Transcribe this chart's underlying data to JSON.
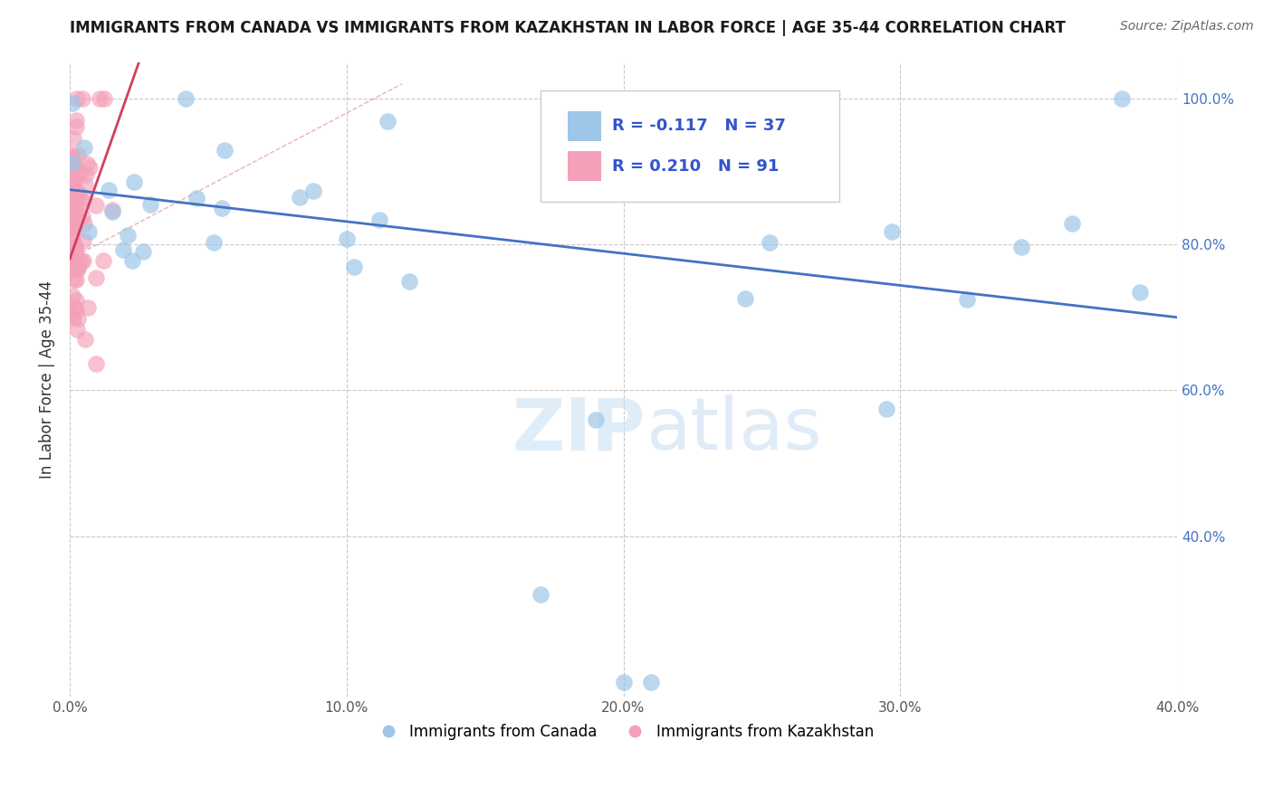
{
  "title": "IMMIGRANTS FROM CANADA VS IMMIGRANTS FROM KAZAKHSTAN IN LABOR FORCE | AGE 35-44 CORRELATION CHART",
  "source": "Source: ZipAtlas.com",
  "ylabel": "In Labor Force | Age 35-44",
  "xlim": [
    0.0,
    0.4
  ],
  "ylim": [
    0.18,
    1.05
  ],
  "xticks": [
    0.0,
    0.1,
    0.2,
    0.3,
    0.4
  ],
  "xtick_labels": [
    "0.0%",
    "10.0%",
    "20.0%",
    "30.0%",
    "40.0%"
  ],
  "yticks": [
    0.4,
    0.6,
    0.8,
    1.0
  ],
  "ytick_right_labels": [
    "40.0%",
    "60.0%",
    "80.0%",
    "100.0%"
  ],
  "canada_color": "#9ec6e8",
  "kazakhstan_color": "#f4a0b8",
  "canada_line_color": "#4472c4",
  "kazakhstan_line_color": "#d04060",
  "R_canada": -0.117,
  "N_canada": 37,
  "R_kazakhstan": 0.21,
  "N_kazakhstan": 91,
  "background_color": "#ffffff",
  "grid_color": "#c8c8c8",
  "watermark_zip": "ZIP",
  "watermark_atlas": "atlas",
  "canada_trend_x0": 0.0,
  "canada_trend_y0": 0.875,
  "canada_trend_x1": 0.4,
  "canada_trend_y1": 0.7,
  "kazakhstan_trend_x0": 0.0,
  "kazakhstan_trend_y0": 0.78,
  "kazakhstan_trend_x1": 0.025,
  "kazakhstan_trend_y1": 1.05
}
